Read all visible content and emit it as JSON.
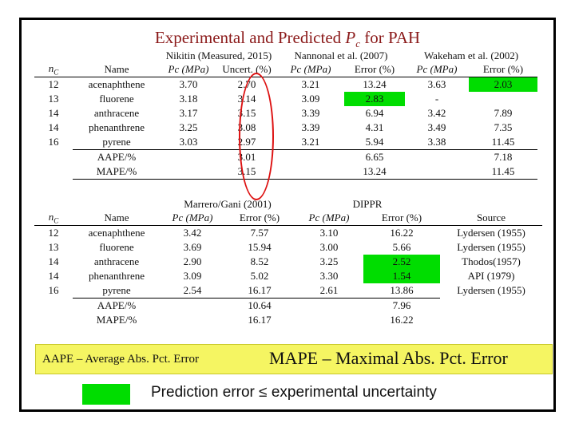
{
  "title": {
    "prefix": "Experimental and Predicted ",
    "symbol": "P",
    "subscript": "c",
    "suffix": " for PAH"
  },
  "table1": {
    "group_headers": [
      "Nikitin (Measured, 2015)",
      "Nannonal et al. (2007)",
      "Wakeham et al. (2002)"
    ],
    "col_headers": {
      "n": "n",
      "n_sub": "C",
      "name": "Name",
      "pc1": "Pc (MPa)",
      "uncert": "Uncert. (%)",
      "pc2": "Pc (MPa)",
      "err2": "Error (%)",
      "pc3": "Pc (MPa)",
      "err3": "Error (%)"
    },
    "rows": [
      {
        "n": "12",
        "name": "acenaphthene",
        "pc1": "3.70",
        "uncert": "2.70",
        "pc2": "3.21",
        "err2": "13.24",
        "pc3": "3.63",
        "err3": "2.03"
      },
      {
        "n": "13",
        "name": "fluorene",
        "pc1": "3.18",
        "uncert": "3.14",
        "pc2": "3.09",
        "err2": "2.83",
        "pc3": "-",
        "err3": ""
      },
      {
        "n": "14",
        "name": "anthracene",
        "pc1": "3.17",
        "uncert": "3.15",
        "pc2": "3.39",
        "err2": "6.94",
        "pc3": "3.42",
        "err3": "7.89"
      },
      {
        "n": "14",
        "name": "phenanthrene",
        "pc1": "3.25",
        "uncert": "3.08",
        "pc2": "3.39",
        "err2": "4.31",
        "pc3": "3.49",
        "err3": "7.35"
      },
      {
        "n": "16",
        "name": "pyrene",
        "pc1": "3.03",
        "uncert": "2.97",
        "pc2": "3.21",
        "err2": "5.94",
        "pc3": "3.38",
        "err3": "11.45"
      }
    ],
    "summary": [
      {
        "label": "AAPE/%",
        "uncert": "3.01",
        "err2": "6.65",
        "err3": "7.18"
      },
      {
        "label": "MAPE/%",
        "uncert": "3.15",
        "err2": "13.24",
        "err3": "11.45"
      }
    ]
  },
  "table2": {
    "group_headers": [
      "Marrero/Gani (2001)",
      "DIPPR"
    ],
    "col_headers": {
      "n": "n",
      "n_sub": "C",
      "name": "Name",
      "pc1": "Pc  (MPa)",
      "err1": "Error (%)",
      "pc2": "Pc  (MPa)",
      "err2": "Error (%)",
      "source": "Source"
    },
    "rows": [
      {
        "n": "12",
        "name": "acenaphthene",
        "pc1": "3.42",
        "err1": "7.57",
        "pc2": "3.10",
        "err2": "16.22",
        "source": "Lydersen (1955)"
      },
      {
        "n": "13",
        "name": "fluorene",
        "pc1": "3.69",
        "err1": "15.94",
        "pc2": "3.00",
        "err2": "5.66",
        "source": "Lydersen (1955)"
      },
      {
        "n": "14",
        "name": "anthracene",
        "pc1": "2.90",
        "err1": "8.52",
        "pc2": "3.25",
        "err2": "2.52",
        "source": "Thodos(1957)"
      },
      {
        "n": "14",
        "name": "phenanthrene",
        "pc1": "3.09",
        "err1": "5.02",
        "pc2": "3.30",
        "err2": "1.54",
        "source": "API (1979)"
      },
      {
        "n": "16",
        "name": "pyrene",
        "pc1": "2.54",
        "err1": "16.17",
        "pc2": "2.61",
        "err2": "13.86",
        "source": "Lydersen (1955)"
      }
    ],
    "summary": [
      {
        "label": "AAPE/%",
        "err1": "10.64",
        "err2": "7.96"
      },
      {
        "label": "MAPE/%",
        "err1": "16.17",
        "err2": "16.22"
      }
    ]
  },
  "abbreviations": {
    "aape": "AAPE – Average Abs.  Pct. Error",
    "mape": "MAPE – Maximal Abs. Pct. Error"
  },
  "legend": {
    "text": "Prediction error ≤ experimental uncertainty"
  },
  "colors": {
    "title": "#8b1a1a",
    "highlight": "#00dd00",
    "ellipse": "#dd1111",
    "legend_bg": "#f5f562"
  }
}
